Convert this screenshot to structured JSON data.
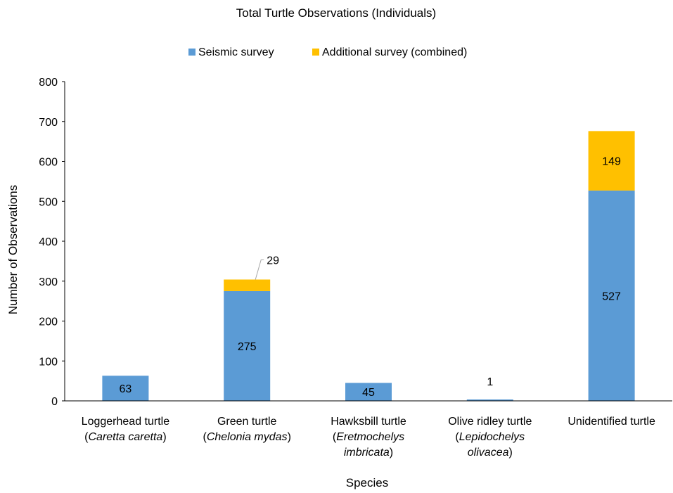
{
  "chart_data": {
    "type": "bar",
    "stacked": true,
    "title": "Total Turtle Observations (Individuals)",
    "xlabel": "Species",
    "ylabel": "Number of Observations",
    "ylim": [
      0,
      800
    ],
    "yticks": [
      0,
      100,
      200,
      300,
      400,
      500,
      600,
      700,
      800
    ],
    "grid": false,
    "legend_position": "top-center",
    "categories": [
      {
        "common": "Loggerhead turtle",
        "scientific": "Caretta caretta"
      },
      {
        "common": "Green turtle",
        "scientific": "Chelonia mydas"
      },
      {
        "common": "Hawksbill turtle",
        "scientific": "Eretmochelys imbricata"
      },
      {
        "common": "Olive ridley turtle",
        "scientific": "Lepidochelys olivacea"
      },
      {
        "common": "Unidentified turtle",
        "scientific": ""
      }
    ],
    "series": [
      {
        "name": "Seismic survey",
        "color": "#5b9bd5",
        "values": [
          63,
          275,
          45,
          1,
          527
        ]
      },
      {
        "name": "Additional survey (combined)",
        "color": "#ffc000",
        "values": [
          0,
          29,
          0,
          0,
          149
        ]
      }
    ],
    "data_labels": [
      {
        "series": 0,
        "category": 0,
        "text": "63"
      },
      {
        "series": 0,
        "category": 1,
        "text": "275"
      },
      {
        "series": 1,
        "category": 1,
        "text": "29",
        "callout": true
      },
      {
        "series": 0,
        "category": 2,
        "text": "45"
      },
      {
        "series": 0,
        "category": 3,
        "text": "1"
      },
      {
        "series": 0,
        "category": 4,
        "text": "527"
      },
      {
        "series": 1,
        "category": 4,
        "text": "149"
      }
    ]
  }
}
